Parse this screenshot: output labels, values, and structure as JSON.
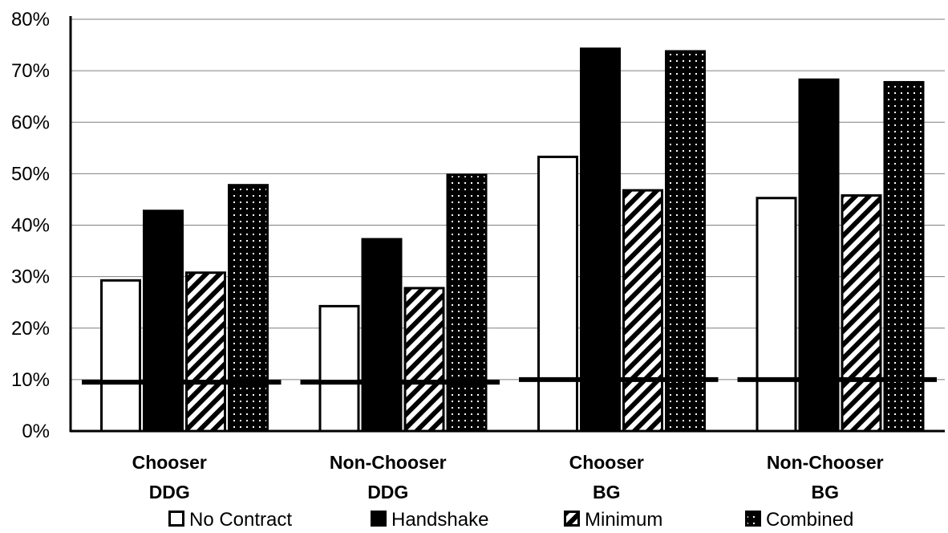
{
  "chart_data": {
    "type": "bar",
    "categories": [
      [
        "Chooser",
        "DDG"
      ],
      [
        "Non-Chooser",
        "DDG"
      ],
      [
        "Chooser",
        "BG"
      ],
      [
        "Non-Chooser",
        "BG"
      ]
    ],
    "series": [
      {
        "name": "No Contract",
        "values": [
          29.5,
          24.5,
          53.5,
          45.5
        ],
        "fill": "#ffffff",
        "pattern": "none"
      },
      {
        "name": "Handshake",
        "values": [
          43,
          37.5,
          74.5,
          68.5
        ],
        "fill": "#000000",
        "pattern": "solid"
      },
      {
        "name": "Minimum",
        "values": [
          31,
          28,
          47,
          46
        ],
        "fill": "#000000",
        "pattern": "diagonal-stripes"
      },
      {
        "name": "Combined",
        "values": [
          48,
          50,
          74,
          68
        ],
        "fill": "#000000",
        "pattern": "dots"
      }
    ],
    "reference_lines": [
      9.5,
      9.5,
      10,
      10
    ],
    "y_ticks": [
      "0%",
      "10%",
      "20%",
      "30%",
      "40%",
      "50%",
      "60%",
      "70%",
      "80%"
    ],
    "ylim": [
      0,
      80
    ],
    "y_unit": "%",
    "title": "",
    "xlabel": "",
    "ylabel": "",
    "grid": true,
    "legend_position": "bottom"
  }
}
